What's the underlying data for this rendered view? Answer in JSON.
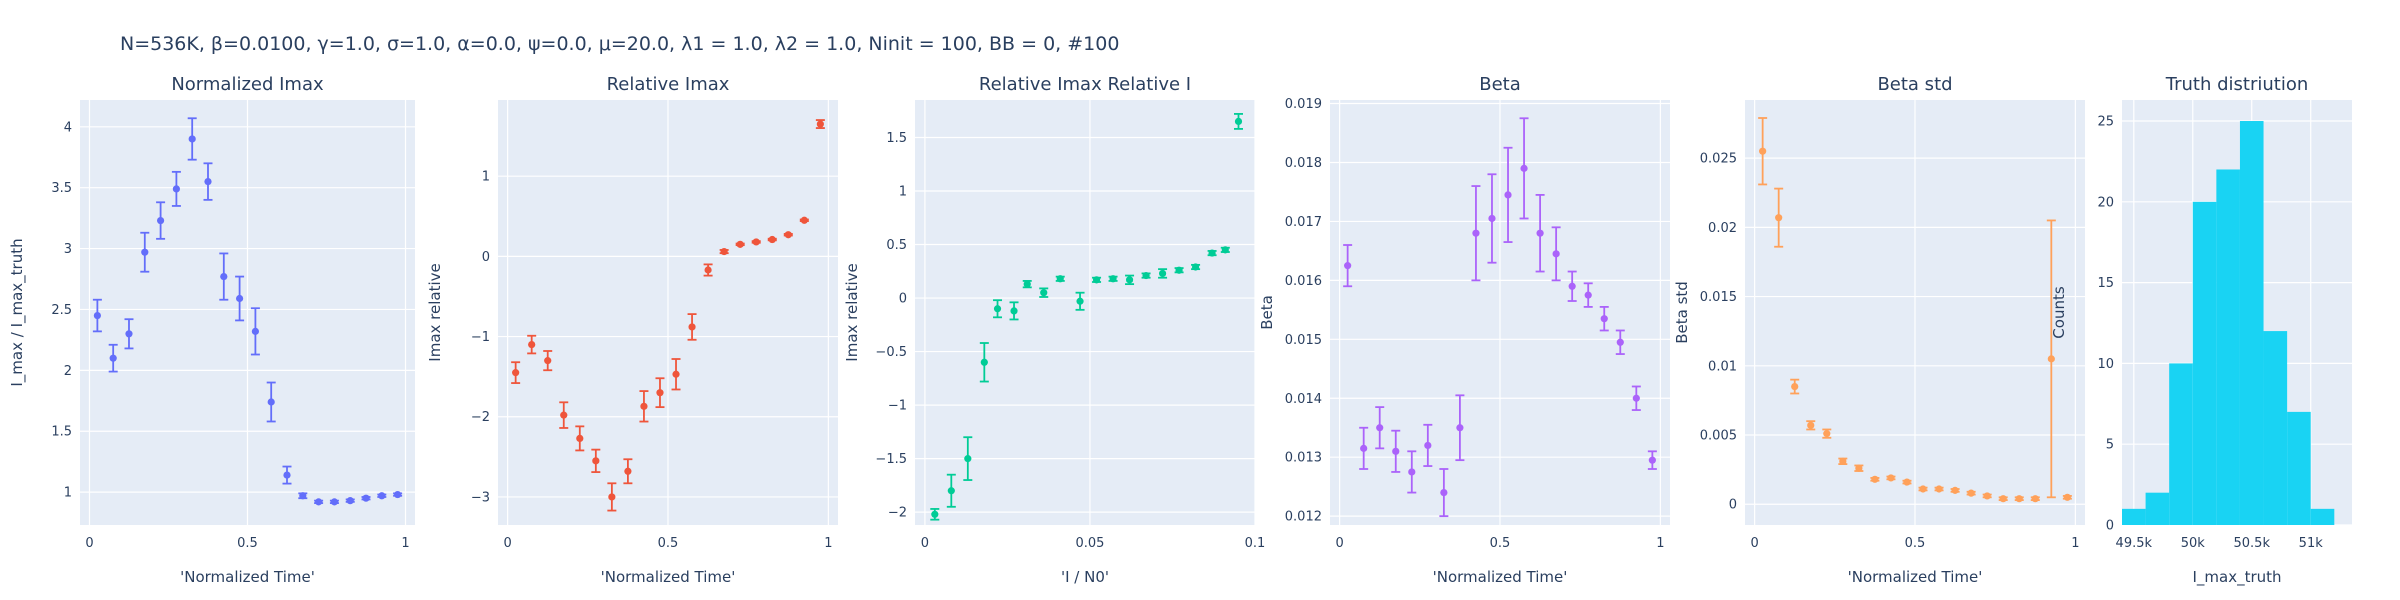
{
  "figure": {
    "title": "N=536K, β=0.0100, γ=1.0, σ=1.0,  α=0.0, ψ=0.0, μ=20.0, λ1 = 1.0, λ2 = 1.0, Ninit = 100, BB = 0, #100"
  },
  "chart_data": [
    {
      "type": "scatter",
      "title": "Normalized Imax",
      "xlabel": "'Normalized Time'",
      "ylabel": "I_max / I_max_truth",
      "color": "#636efa",
      "xlim": [
        -0.03,
        1.03
      ],
      "ylim": [
        0.73,
        4.22
      ],
      "xticks": [
        {
          "v": 0,
          "label": "0"
        },
        {
          "v": 0.5,
          "label": "0.5"
        },
        {
          "v": 1,
          "label": "1"
        }
      ],
      "yticks": [
        {
          "v": 1,
          "label": "1"
        },
        {
          "v": 1.5,
          "label": "1.5"
        },
        {
          "v": 2,
          "label": "2"
        },
        {
          "v": 2.5,
          "label": "2.5"
        },
        {
          "v": 3,
          "label": "3"
        },
        {
          "v": 3.5,
          "label": "3.5"
        },
        {
          "v": 4,
          "label": "4"
        }
      ],
      "x": [
        0.025,
        0.075,
        0.125,
        0.175,
        0.225,
        0.275,
        0.325,
        0.375,
        0.425,
        0.475,
        0.525,
        0.575,
        0.625,
        0.675,
        0.725,
        0.775,
        0.825,
        0.875,
        0.925,
        0.975
      ],
      "y": [
        2.45,
        2.1,
        2.3,
        2.97,
        3.23,
        3.49,
        3.9,
        3.55,
        2.77,
        2.59,
        2.32,
        1.74,
        1.14,
        0.97,
        0.92,
        0.92,
        0.93,
        0.95,
        0.97,
        0.98
      ],
      "err": [
        0.13,
        0.11,
        0.12,
        0.16,
        0.15,
        0.14,
        0.17,
        0.15,
        0.19,
        0.18,
        0.19,
        0.16,
        0.07,
        0.02,
        0.01,
        0.01,
        0.01,
        0.01,
        0.01,
        0.01
      ]
    },
    {
      "type": "scatter",
      "title": "Relative Imax",
      "xlabel": "'Normalized Time'",
      "ylabel": "Imax relative",
      "color": "#ef553b",
      "xlim": [
        -0.03,
        1.03
      ],
      "ylim": [
        -3.35,
        1.95
      ],
      "xticks": [
        {
          "v": 0,
          "label": "0"
        },
        {
          "v": 0.5,
          "label": "0.5"
        },
        {
          "v": 1,
          "label": "1"
        }
      ],
      "yticks": [
        {
          "v": -3,
          "label": "−3"
        },
        {
          "v": -2,
          "label": "−2"
        },
        {
          "v": -1,
          "label": "−1"
        },
        {
          "v": 0,
          "label": "0"
        },
        {
          "v": 1,
          "label": "1"
        }
      ],
      "x": [
        0.025,
        0.075,
        0.125,
        0.175,
        0.225,
        0.275,
        0.325,
        0.375,
        0.425,
        0.475,
        0.525,
        0.575,
        0.625,
        0.675,
        0.725,
        0.775,
        0.825,
        0.875,
        0.925,
        0.975
      ],
      "y": [
        -1.45,
        -1.1,
        -1.3,
        -1.98,
        -2.27,
        -2.55,
        -3.0,
        -2.68,
        -1.87,
        -1.7,
        -1.47,
        -0.88,
        -0.17,
        0.06,
        0.15,
        0.18,
        0.21,
        0.27,
        0.45,
        1.65
      ],
      "err": [
        0.13,
        0.11,
        0.12,
        0.16,
        0.15,
        0.14,
        0.17,
        0.15,
        0.19,
        0.18,
        0.19,
        0.16,
        0.07,
        0.02,
        0.01,
        0.01,
        0.01,
        0.01,
        0.01,
        0.05
      ]
    },
    {
      "type": "scatter",
      "title": "Relative Imax Relative I",
      "xlabel": "'I / N0'",
      "ylabel": "Imax relative",
      "color": "#00cc96",
      "xlim": [
        -0.003,
        0.1
      ],
      "ylim": [
        -2.12,
        1.85
      ],
      "xticks": [
        {
          "v": 0,
          "label": "0"
        },
        {
          "v": 0.05,
          "label": "0.05"
        },
        {
          "v": 0.1,
          "label": "0.1"
        }
      ],
      "yticks": [
        {
          "v": -2,
          "label": "−2"
        },
        {
          "v": -1.5,
          "label": "−1.5"
        },
        {
          "v": -1,
          "label": "−1"
        },
        {
          "v": -0.5,
          "label": "−0.5"
        },
        {
          "v": 0,
          "label": "0"
        },
        {
          "v": 0.5,
          "label": "0.5"
        },
        {
          "v": 1,
          "label": "1"
        },
        {
          "v": 1.5,
          "label": "1.5"
        }
      ],
      "x": [
        0.003,
        0.008,
        0.013,
        0.018,
        0.022,
        0.027,
        0.031,
        0.036,
        0.041,
        0.047,
        0.052,
        0.057,
        0.062,
        0.067,
        0.072,
        0.077,
        0.082,
        0.087,
        0.091,
        0.095
      ],
      "y": [
        -2.02,
        -1.8,
        -1.5,
        -0.6,
        -0.1,
        -0.12,
        0.13,
        0.05,
        0.18,
        -0.03,
        0.17,
        0.18,
        0.17,
        0.21,
        0.23,
        0.26,
        0.29,
        0.42,
        0.45,
        1.65
      ],
      "err": [
        0.05,
        0.15,
        0.2,
        0.18,
        0.08,
        0.08,
        0.03,
        0.04,
        0.02,
        0.08,
        0.02,
        0.02,
        0.04,
        0.02,
        0.04,
        0.02,
        0.02,
        0.02,
        0.02,
        0.07
      ]
    },
    {
      "type": "scatter",
      "title": "Beta",
      "xlabel": "'Normalized Time'",
      "ylabel": "Beta",
      "color": "#ab63fa",
      "xlim": [
        -0.03,
        1.03
      ],
      "ylim": [
        0.01185,
        0.01906
      ],
      "xticks": [
        {
          "v": 0,
          "label": "0"
        },
        {
          "v": 0.5,
          "label": "0.5"
        },
        {
          "v": 1,
          "label": "1"
        }
      ],
      "yticks": [
        {
          "v": 0.012,
          "label": "0.012"
        },
        {
          "v": 0.013,
          "label": "0.013"
        },
        {
          "v": 0.014,
          "label": "0.014"
        },
        {
          "v": 0.015,
          "label": "0.015"
        },
        {
          "v": 0.016,
          "label": "0.016"
        },
        {
          "v": 0.017,
          "label": "0.017"
        },
        {
          "v": 0.018,
          "label": "0.018"
        },
        {
          "v": 0.019,
          "label": "0.019"
        }
      ],
      "x": [
        0.025,
        0.075,
        0.125,
        0.175,
        0.225,
        0.275,
        0.325,
        0.375,
        0.425,
        0.475,
        0.525,
        0.575,
        0.625,
        0.675,
        0.725,
        0.775,
        0.825,
        0.875,
        0.925,
        0.975
      ],
      "y": [
        0.01625,
        0.01315,
        0.0135,
        0.0131,
        0.01275,
        0.0132,
        0.0124,
        0.0135,
        0.0168,
        0.01705,
        0.01745,
        0.0179,
        0.0168,
        0.01645,
        0.0159,
        0.01575,
        0.01535,
        0.01495,
        0.014,
        0.01295
      ],
      "err": [
        0.00035,
        0.00035,
        0.00035,
        0.00035,
        0.00035,
        0.00035,
        0.0004,
        0.00055,
        0.0008,
        0.00075,
        0.0008,
        0.00085,
        0.00065,
        0.00045,
        0.00025,
        0.0002,
        0.0002,
        0.0002,
        0.0002,
        0.00015
      ]
    },
    {
      "type": "scatter",
      "title": "Beta std",
      "xlabel": "'Normalized Time'",
      "ylabel": "Beta std",
      "color": "#ffa15a",
      "xlim": [
        -0.03,
        1.03
      ],
      "ylim": [
        -0.0015,
        0.0292
      ],
      "xticks": [
        {
          "v": 0,
          "label": "0"
        },
        {
          "v": 0.5,
          "label": "0.5"
        },
        {
          "v": 1,
          "label": "1"
        }
      ],
      "yticks": [
        {
          "v": 0,
          "label": "0"
        },
        {
          "v": 0.005,
          "label": "0.005"
        },
        {
          "v": 0.01,
          "label": "0.01"
        },
        {
          "v": 0.015,
          "label": "0.015"
        },
        {
          "v": 0.02,
          "label": "0.02"
        },
        {
          "v": 0.025,
          "label": "0.025"
        }
      ],
      "x": [
        0.025,
        0.075,
        0.125,
        0.175,
        0.225,
        0.275,
        0.325,
        0.375,
        0.425,
        0.475,
        0.525,
        0.575,
        0.625,
        0.675,
        0.725,
        0.775,
        0.825,
        0.875,
        0.925,
        0.975
      ],
      "y": [
        0.0255,
        0.0207,
        0.0085,
        0.0057,
        0.0051,
        0.0031,
        0.0026,
        0.0018,
        0.0019,
        0.0016,
        0.0011,
        0.0011,
        0.001,
        0.0008,
        0.0006,
        0.0004,
        0.0004,
        0.0004,
        0.0105,
        0.0005
      ],
      "err": [
        0.0024,
        0.0021,
        0.0005,
        0.0003,
        0.0003,
        0.0002,
        0.0002,
        0.0001,
        0.0001,
        0.0001,
        0.0001,
        0.0001,
        0.0001,
        0.0001,
        0.0001,
        0.0001,
        0.0001,
        0.0001,
        0.01,
        0.0001
      ]
    },
    {
      "type": "bar",
      "title": "Truth distriution",
      "xlabel": "I_max_truth",
      "ylabel": "Counts",
      "color": "#19d3f3",
      "xlim": [
        49400,
        51350
      ],
      "ylim": [
        0,
        26.3
      ],
      "xticks": [
        {
          "v": 49500,
          "label": "49.5k"
        },
        {
          "v": 50000,
          "label": "50k"
        },
        {
          "v": 50500,
          "label": "50.5k"
        },
        {
          "v": 51000,
          "label": "51k"
        }
      ],
      "yticks": [
        {
          "v": 0,
          "label": "0"
        },
        {
          "v": 5,
          "label": "5"
        },
        {
          "v": 10,
          "label": "10"
        },
        {
          "v": 15,
          "label": "15"
        },
        {
          "v": 20,
          "label": "20"
        },
        {
          "v": 25,
          "label": "25"
        }
      ],
      "bins": [
        {
          "x0": 49400,
          "x1": 49600,
          "count": 1
        },
        {
          "x0": 49600,
          "x1": 49800,
          "count": 2
        },
        {
          "x0": 49800,
          "x1": 50000,
          "count": 10
        },
        {
          "x0": 50000,
          "x1": 50200,
          "count": 20
        },
        {
          "x0": 50200,
          "x1": 50400,
          "count": 22
        },
        {
          "x0": 50400,
          "x1": 50600,
          "count": 25
        },
        {
          "x0": 50600,
          "x1": 50800,
          "count": 12
        },
        {
          "x0": 50800,
          "x1": 51000,
          "count": 7
        },
        {
          "x0": 51000,
          "x1": 51200,
          "count": 1
        }
      ]
    }
  ]
}
